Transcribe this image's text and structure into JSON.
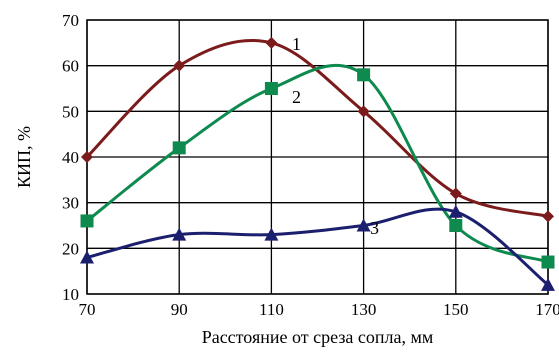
{
  "chart_data": {
    "type": "line",
    "title": "",
    "xlabel": "Расстояние от среза сопла, мм",
    "ylabel": "КИП, %",
    "xlim": [
      70,
      170
    ],
    "ylim": [
      10,
      70
    ],
    "x_ticks": [
      "70",
      "90",
      "110",
      "130",
      "150",
      "170"
    ],
    "y_ticks": [
      "10",
      "20",
      "30",
      "40",
      "50",
      "60",
      "70"
    ],
    "grid": true,
    "smooth": true,
    "legend": "none",
    "series": [
      {
        "name": "1",
        "color": "#7b1b1b",
        "marker": "diamond",
        "points": [
          [
            70,
            40
          ],
          [
            90,
            60
          ],
          [
            110,
            65
          ],
          [
            130,
            50
          ],
          [
            150,
            32
          ],
          [
            170,
            27
          ]
        ]
      },
      {
        "name": "2",
        "color": "#0f8a4f",
        "marker": "square",
        "points": [
          [
            70,
            26
          ],
          [
            90,
            42
          ],
          [
            110,
            55
          ],
          [
            130,
            58
          ],
          [
            150,
            25
          ],
          [
            170,
            17
          ]
        ]
      },
      {
        "name": "3",
        "color": "#1b1f6e",
        "marker": "triangle",
        "points": [
          [
            70,
            18
          ],
          [
            90,
            23
          ],
          [
            110,
            23
          ],
          [
            130,
            25
          ],
          [
            150,
            28
          ],
          [
            170,
            12
          ]
        ]
      }
    ]
  }
}
